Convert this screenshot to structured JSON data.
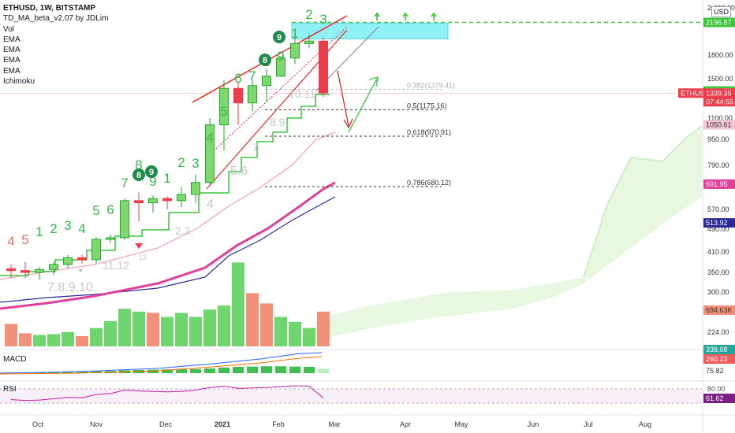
{
  "legend": {
    "symbol": "ETHUSD, 1W, BITSTAMP",
    "indicators": [
      "TD_MA_beta_v2.07 by JDLim",
      "Vol",
      "EMA",
      "EMA",
      "EMA",
      "EMA",
      "Ichimoku"
    ]
  },
  "currency": "USD",
  "macd_label": "MACD",
  "rsi_label": "RSI",
  "colors": {
    "up": "#26a62b",
    "up_fill": "#7fd86f",
    "down": "#ef3c4a",
    "vol_up": "#6fd56f",
    "vol_down": "#f1917a",
    "ema_pink": "#e0409a",
    "ema_light": "#f0b3c8",
    "ema_navy": "#2a2a9a",
    "cloud": "#e5f6dd",
    "cyan": "#8ff0f6",
    "green_line": "#3bc63b",
    "red_line": "#e52b2b"
  },
  "chart_data": {
    "type": "candlestick",
    "symbol": "ETHUSD",
    "interval": "1W",
    "exchange": "BITSTAMP",
    "y_scale": "log",
    "price_ticks": [
      "2,400.00",
      "1800.00",
      "1500.00",
      "1100.00",
      "950.00",
      "790.00",
      "680.00",
      "570.00",
      "490.00",
      "410.00",
      "350.00",
      "300.00",
      "224.00"
    ],
    "x_ticks": [
      "Oct",
      "Nov",
      "Dec",
      "2021",
      "Feb",
      "Mar",
      "Apr",
      "May",
      "Jun",
      "Jul",
      "Aug"
    ],
    "candles": [
      {
        "o": 360,
        "h": 372,
        "l": 335,
        "c": 355
      },
      {
        "o": 355,
        "h": 380,
        "l": 335,
        "c": 350
      },
      {
        "o": 350,
        "h": 365,
        "l": 330,
        "c": 358
      },
      {
        "o": 358,
        "h": 380,
        "l": 345,
        "c": 372
      },
      {
        "o": 372,
        "h": 400,
        "l": 360,
        "c": 392
      },
      {
        "o": 392,
        "h": 400,
        "l": 375,
        "c": 386
      },
      {
        "o": 386,
        "h": 460,
        "l": 375,
        "c": 452
      },
      {
        "o": 452,
        "h": 470,
        "l": 440,
        "c": 458
      },
      {
        "o": 458,
        "h": 620,
        "l": 450,
        "c": 610
      },
      {
        "o": 610,
        "h": 650,
        "l": 520,
        "c": 600
      },
      {
        "o": 600,
        "h": 635,
        "l": 555,
        "c": 620
      },
      {
        "o": 620,
        "h": 630,
        "l": 570,
        "c": 610
      },
      {
        "o": 610,
        "h": 680,
        "l": 580,
        "c": 640
      },
      {
        "o": 640,
        "h": 740,
        "l": 600,
        "c": 700
      },
      {
        "o": 700,
        "h": 1100,
        "l": 690,
        "c": 1050
      },
      {
        "o": 1050,
        "h": 1480,
        "l": 880,
        "c": 1390
      },
      {
        "o": 1390,
        "h": 1460,
        "l": 1050,
        "c": 1240
      },
      {
        "o": 1240,
        "h": 1480,
        "l": 1160,
        "c": 1420
      },
      {
        "o": 1420,
        "h": 1620,
        "l": 1250,
        "c": 1530
      },
      {
        "o": 1530,
        "h": 1780,
        "l": 1520,
        "c": 1760
      },
      {
        "o": 1760,
        "h": 2020,
        "l": 1680,
        "c": 1930
      },
      {
        "o": 1930,
        "h": 2050,
        "l": 1880,
        "c": 1960
      },
      {
        "o": 1960,
        "h": 2000,
        "l": 1300,
        "c": 1339.35
      }
    ],
    "td_labels": [
      "4",
      "5",
      "1",
      "2",
      "3",
      "4",
      "5",
      "6",
      "7",
      "8",
      "9",
      "1",
      "2",
      "3",
      "4",
      "5",
      "6",
      "7",
      "8",
      "9",
      "1",
      "2",
      "3"
    ],
    "td_circled": [
      "8",
      "9",
      "8",
      "9"
    ],
    "td_faded": [
      "7.8.9.10.",
      "11.12",
      "2.3.",
      "4",
      "5.6",
      "7",
      "8.9",
      "10.11",
      "13"
    ],
    "volume": [
      {
        "v": 0.55,
        "up": false
      },
      {
        "v": 0.32,
        "up": false
      },
      {
        "v": 0.28,
        "up": true
      },
      {
        "v": 0.3,
        "up": true
      },
      {
        "v": 0.35,
        "up": true
      },
      {
        "v": 0.25,
        "up": false
      },
      {
        "v": 0.45,
        "up": true
      },
      {
        "v": 0.62,
        "up": true
      },
      {
        "v": 0.92,
        "up": true
      },
      {
        "v": 0.85,
        "up": true
      },
      {
        "v": 0.82,
        "up": false
      },
      {
        "v": 0.72,
        "up": true
      },
      {
        "v": 0.82,
        "up": true
      },
      {
        "v": 0.72,
        "up": true
      },
      {
        "v": 0.9,
        "up": true
      },
      {
        "v": 1.0,
        "up": true
      },
      {
        "v": 2.05,
        "up": true
      },
      {
        "v": 1.3,
        "up": false
      },
      {
        "v": 1.05,
        "up": false
      },
      {
        "v": 0.72,
        "up": true
      },
      {
        "v": 0.6,
        "up": true
      },
      {
        "v": 0.45,
        "up": true
      },
      {
        "v": 0.85,
        "up": false
      }
    ],
    "fib_levels": [
      {
        "label": "0.382(1379.41)",
        "price": 1379.41
      },
      {
        "label": "0.5(1175.16)",
        "price": 1175.16
      },
      {
        "label": "0.618(970.91)",
        "price": 970.91
      },
      {
        "label": "0.786(680.12)",
        "price": 680.12
      }
    ],
    "price_labels": [
      {
        "text": "2196.87",
        "kind": "green",
        "price": 2196.87
      },
      {
        "text": "1361.77",
        "kind": "green",
        "price": 1361.77
      },
      {
        "text": "ETHUSD",
        "kind": "red",
        "price": 1339.35
      },
      {
        "text": "1339.35",
        "kind": "red",
        "price": 1339.35
      },
      {
        "text": "07:44:55",
        "kind": "red",
        "price": 1300
      },
      {
        "text": "1050.61",
        "kind": "pink",
        "price": 1050.61
      },
      {
        "text": "691.95",
        "kind": "magenta",
        "price": 691.95
      },
      {
        "text": "513.92",
        "kind": "navy",
        "price": 513.92
      },
      {
        "text": "694.63K",
        "kind": "volume"
      }
    ],
    "macd": {
      "labels": [
        "338.08",
        "260.23",
        "75.82"
      ],
      "hist": [
        0.1,
        0.12,
        0.15,
        0.18,
        0.22,
        0.25,
        0.3,
        0.35,
        0.45,
        0.5,
        0.55,
        0.6,
        0.62,
        0.65,
        0.75,
        0.9,
        1.0,
        1.05,
        1.1,
        1.1,
        1.05,
        1.0,
        0.7
      ]
    },
    "rsi": {
      "labels": [
        "80.00",
        "61.62"
      ],
      "values": [
        58,
        56,
        57,
        60,
        63,
        62,
        70,
        72,
        80,
        78,
        77,
        76,
        77,
        80,
        86,
        89,
        84,
        85,
        86,
        88,
        90,
        89,
        61.62
      ]
    },
    "annotations": [
      "up-arrows",
      "target-line-2196.87",
      "cyan-zone",
      "rising-wedge",
      "down-arrow",
      "up-arrow"
    ]
  }
}
